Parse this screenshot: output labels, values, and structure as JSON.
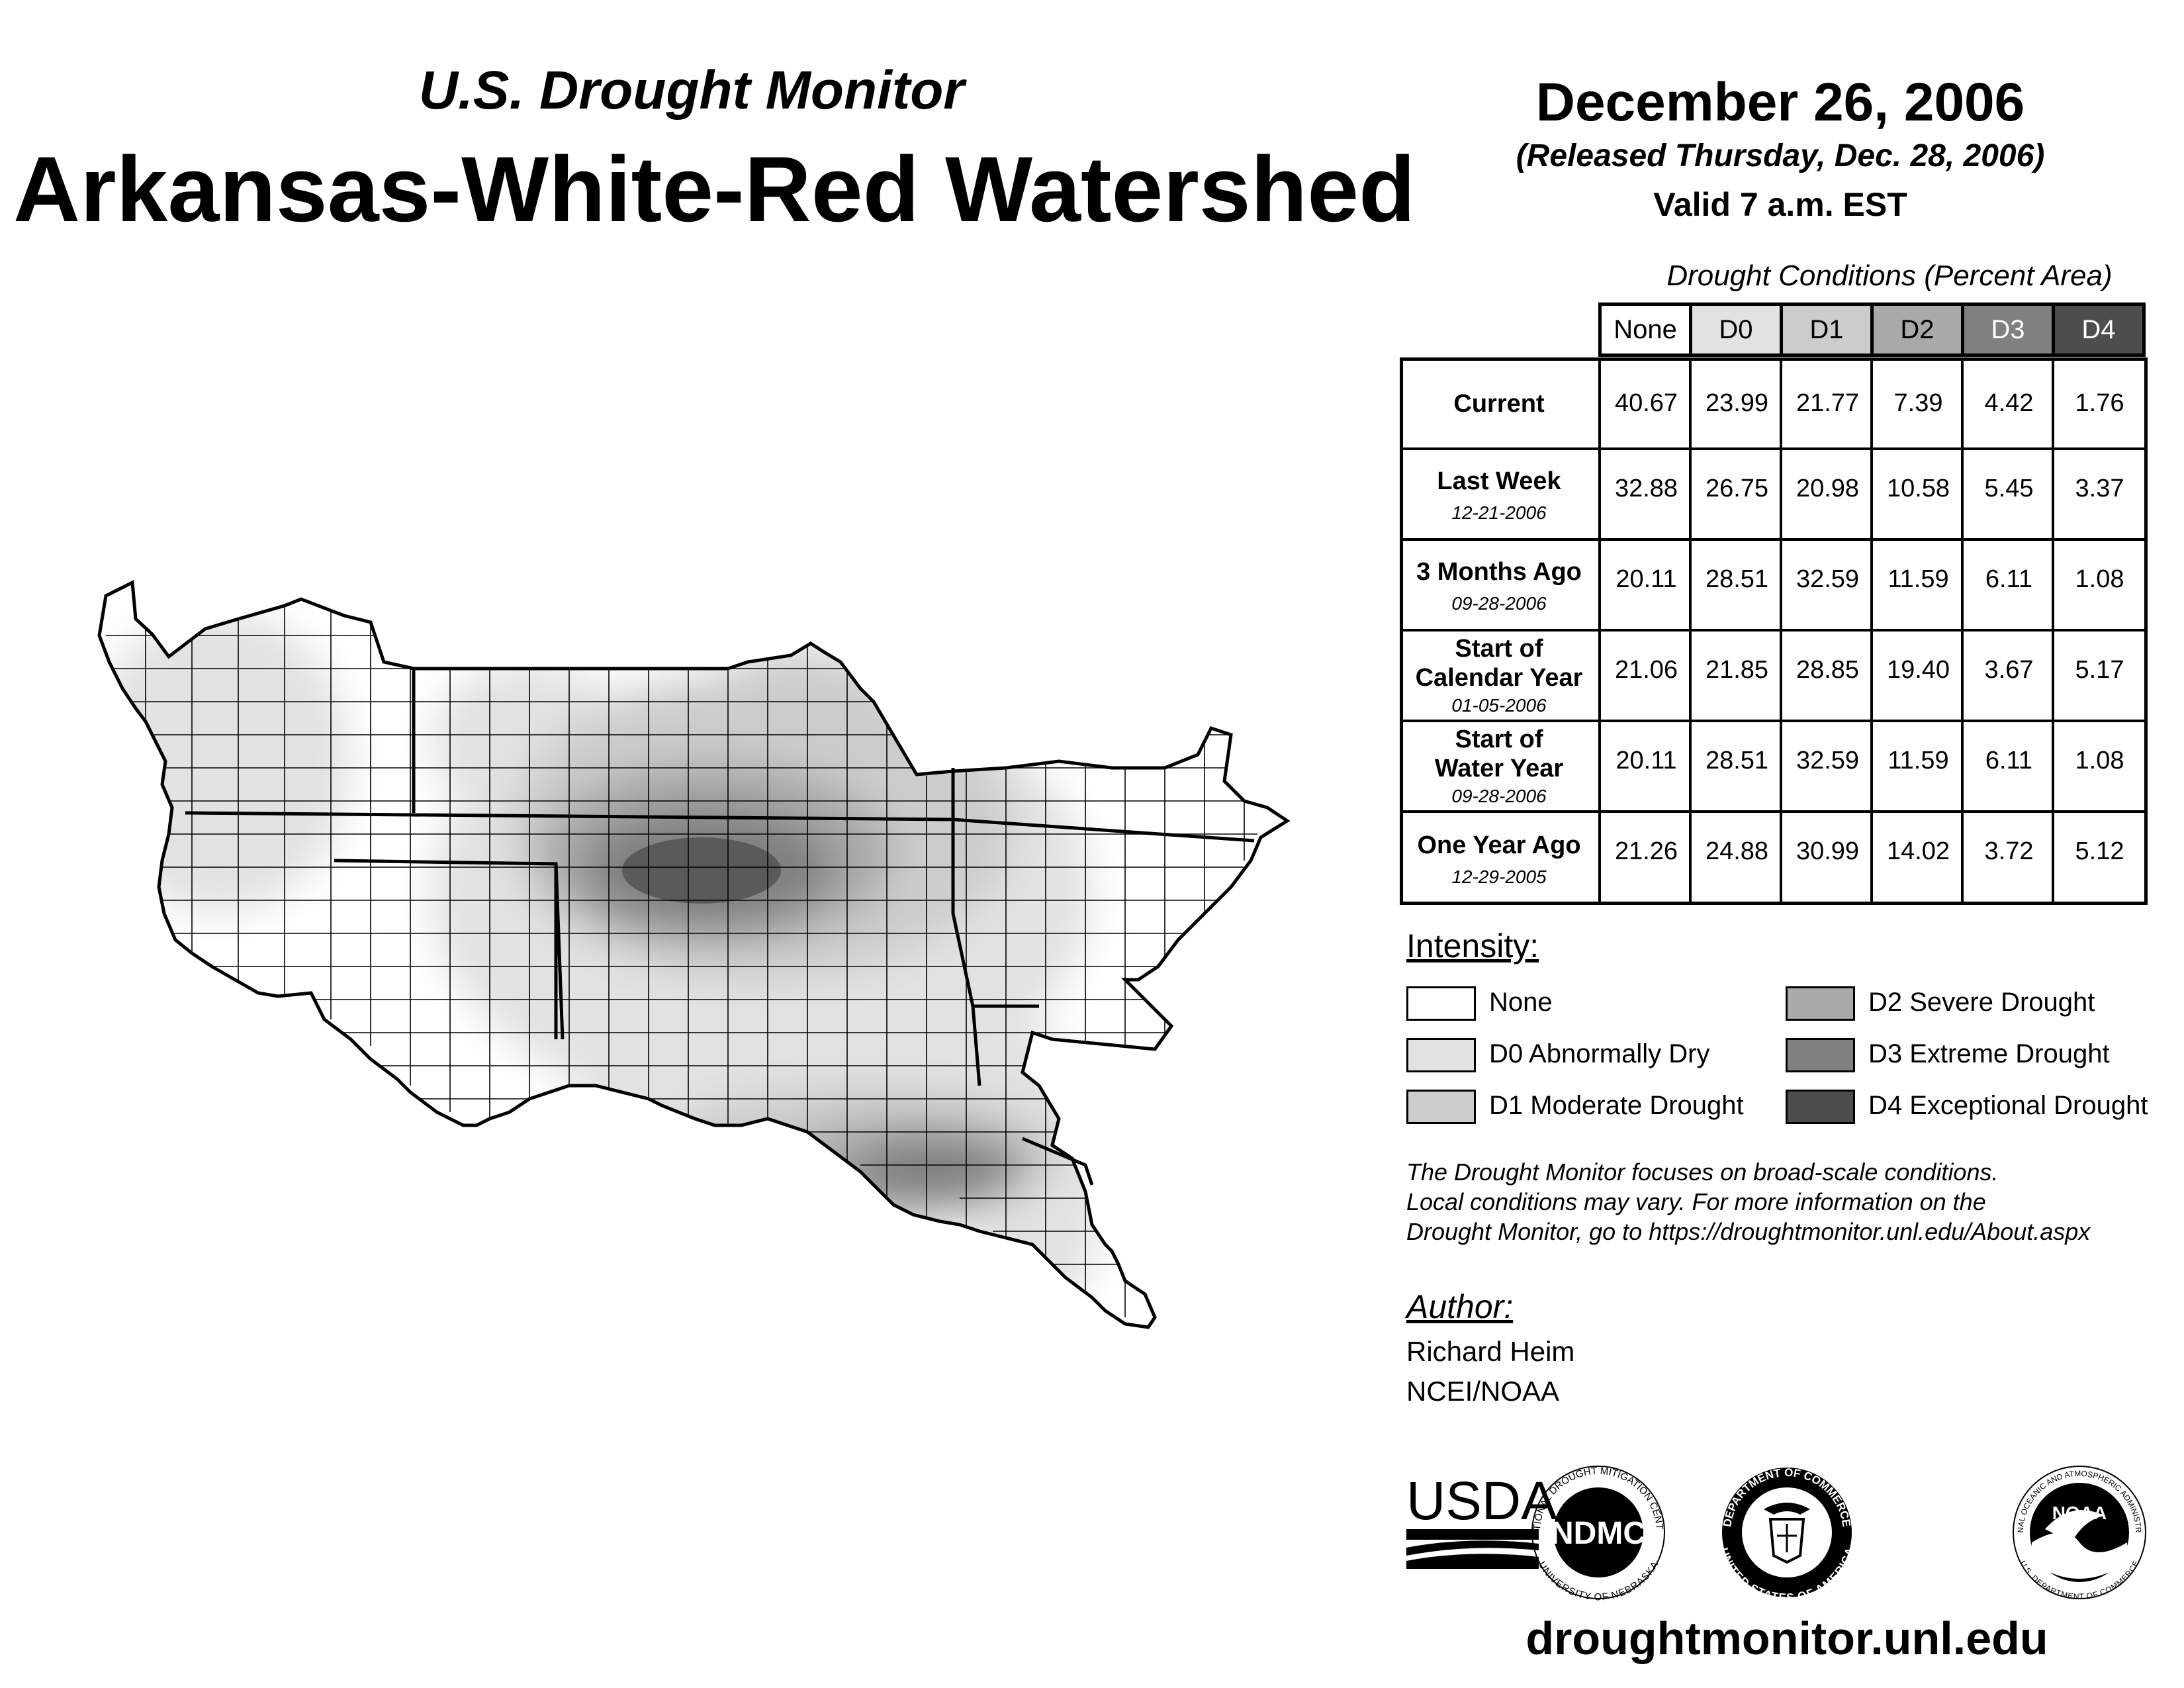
{
  "header": {
    "subtitle": "U.S. Drought Monitor",
    "title": "Arkansas-White-Red Watershed",
    "date": "December 26, 2006",
    "released": "(Released Thursday, Dec. 28, 2006)",
    "valid": "Valid 7 a.m. EST"
  },
  "table": {
    "caption": "Drought Conditions (Percent Area)",
    "columns": [
      "None",
      "D0",
      "D1",
      "D2",
      "D3",
      "D4"
    ],
    "column_fills": [
      "#ffffff",
      "#e2e2e2",
      "#cccccc",
      "#a9a9a9",
      "#808080",
      "#4d4d4d"
    ],
    "column_text_colors": [
      "#000000",
      "#000000",
      "#000000",
      "#000000",
      "#ffffff",
      "#ffffff"
    ],
    "rows": [
      {
        "label": "Current",
        "label2": "",
        "date": "",
        "values": [
          "40.67",
          "23.99",
          "21.77",
          "7.39",
          "4.42",
          "1.76"
        ]
      },
      {
        "label": "Last Week",
        "label2": "",
        "date": "12-21-2006",
        "values": [
          "32.88",
          "26.75",
          "20.98",
          "10.58",
          "5.45",
          "3.37"
        ]
      },
      {
        "label": "3 Months Ago",
        "label2": "",
        "date": "09-28-2006",
        "values": [
          "20.11",
          "28.51",
          "32.59",
          "11.59",
          "6.11",
          "1.08"
        ]
      },
      {
        "label": "Start of",
        "label2": "Calendar Year",
        "date": "01-05-2006",
        "values": [
          "21.06",
          "21.85",
          "28.85",
          "19.40",
          "3.67",
          "5.17"
        ]
      },
      {
        "label": "Start of",
        "label2": "Water Year",
        "date": "09-28-2006",
        "values": [
          "20.11",
          "28.51",
          "32.59",
          "11.59",
          "6.11",
          "1.08"
        ]
      },
      {
        "label": "One Year Ago",
        "label2": "",
        "date": "12-29-2005",
        "values": [
          "21.26",
          "24.88",
          "30.99",
          "14.02",
          "3.72",
          "5.12"
        ]
      }
    ]
  },
  "legend": {
    "title": "Intensity:",
    "items": [
      {
        "label": "None",
        "color": "#ffffff"
      },
      {
        "label": "D0 Abnormally Dry",
        "color": "#e2e2e2"
      },
      {
        "label": "D1 Moderate Drought",
        "color": "#cccccc"
      },
      {
        "label": "D2 Severe Drought",
        "color": "#a9a9a9"
      },
      {
        "label": "D3 Extreme Drought",
        "color": "#808080"
      },
      {
        "label": "D4 Exceptional Drought",
        "color": "#4d4d4d"
      }
    ]
  },
  "note": {
    "lines": [
      "The Drought Monitor focuses on broad-scale conditions.",
      "Local conditions may vary. For more information on the",
      "Drought Monitor, go to https://droughtmonitor.unl.edu/About.aspx"
    ]
  },
  "author": {
    "title": "Author:",
    "name": "Richard Heim",
    "org": "NCEI/NOAA"
  },
  "logos": {
    "usda": "USDA",
    "ndmc": "NDMC",
    "ndmc_ring_top": "NATIONAL DROUGHT MITIGATION CENTER",
    "ndmc_ring_bottom": "UNIVERSITY OF NEBRASKA",
    "doc_ring_top": "DEPARTMENT OF COMMERCE",
    "doc_ring_bottom": "UNITED STATES OF AMERICA",
    "noaa": "NOAA",
    "noaa_ring_top": "NATIONAL OCEANIC AND ATMOSPHERIC ADMINISTRATION",
    "noaa_ring_bottom": "U.S. DEPARTMENT OF COMMERCE"
  },
  "footer": {
    "url": "droughtmonitor.unl.edu"
  }
}
